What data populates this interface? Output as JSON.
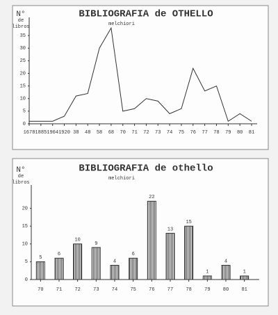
{
  "chart_data": [
    {
      "type": "line",
      "title": "BIBLIOGRAFIA de OTHELLO",
      "subtitle": "melchiori",
      "ylabel": [
        "N°",
        "de",
        "libros"
      ],
      "categories": [
        "1678",
        "1885",
        "1904",
        "1920",
        "38",
        "48",
        "58",
        "68",
        "70",
        "71",
        "72",
        "73",
        "74",
        "75",
        "76",
        "77",
        "78",
        "79",
        "80",
        "81"
      ],
      "values": [
        1,
        1,
        1,
        3,
        11,
        12,
        30,
        38,
        5,
        6,
        10,
        9,
        4,
        6,
        22,
        13,
        15,
        1,
        4,
        1
      ],
      "color": "#333333",
      "ylim": [
        0,
        40
      ],
      "yticks": [
        0,
        5,
        10,
        15,
        20,
        25,
        30,
        35
      ]
    },
    {
      "type": "bar",
      "title": "BIBLIOGRAFIA de othello",
      "subtitle": "melchiori",
      "ylabel": [
        "N°",
        "de",
        "libros"
      ],
      "categories": [
        "70",
        "71",
        "72",
        "73",
        "74",
        "75",
        "76",
        "77",
        "78",
        "79",
        "80",
        "81"
      ],
      "values": [
        5,
        6,
        10,
        9,
        4,
        6,
        22,
        13,
        15,
        1,
        4,
        1
      ],
      "color": "#333333",
      "ylim": [
        0,
        25
      ],
      "yticks": [
        0,
        5,
        10,
        15,
        20
      ]
    }
  ]
}
